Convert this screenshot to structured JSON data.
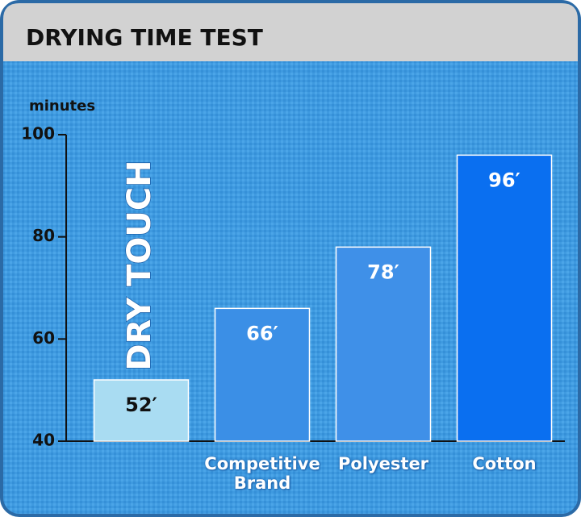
{
  "chart_data": {
    "type": "bar",
    "title": "DRYING TIME TEST",
    "y_label": "minutes",
    "categories": [
      "DRY TOUCH",
      "Competitive Brand",
      "Polyester",
      "Cotton"
    ],
    "values": [
      52,
      66,
      78,
      96
    ],
    "value_labels": [
      "52′",
      "66′",
      "78′",
      "96′"
    ],
    "colors": [
      "#a9dcf2",
      "#3b8fe6",
      "#3f90e8",
      "#0a6ff0"
    ],
    "ylim": [
      40,
      100
    ],
    "yticks": [
      40,
      60,
      80,
      100
    ]
  }
}
